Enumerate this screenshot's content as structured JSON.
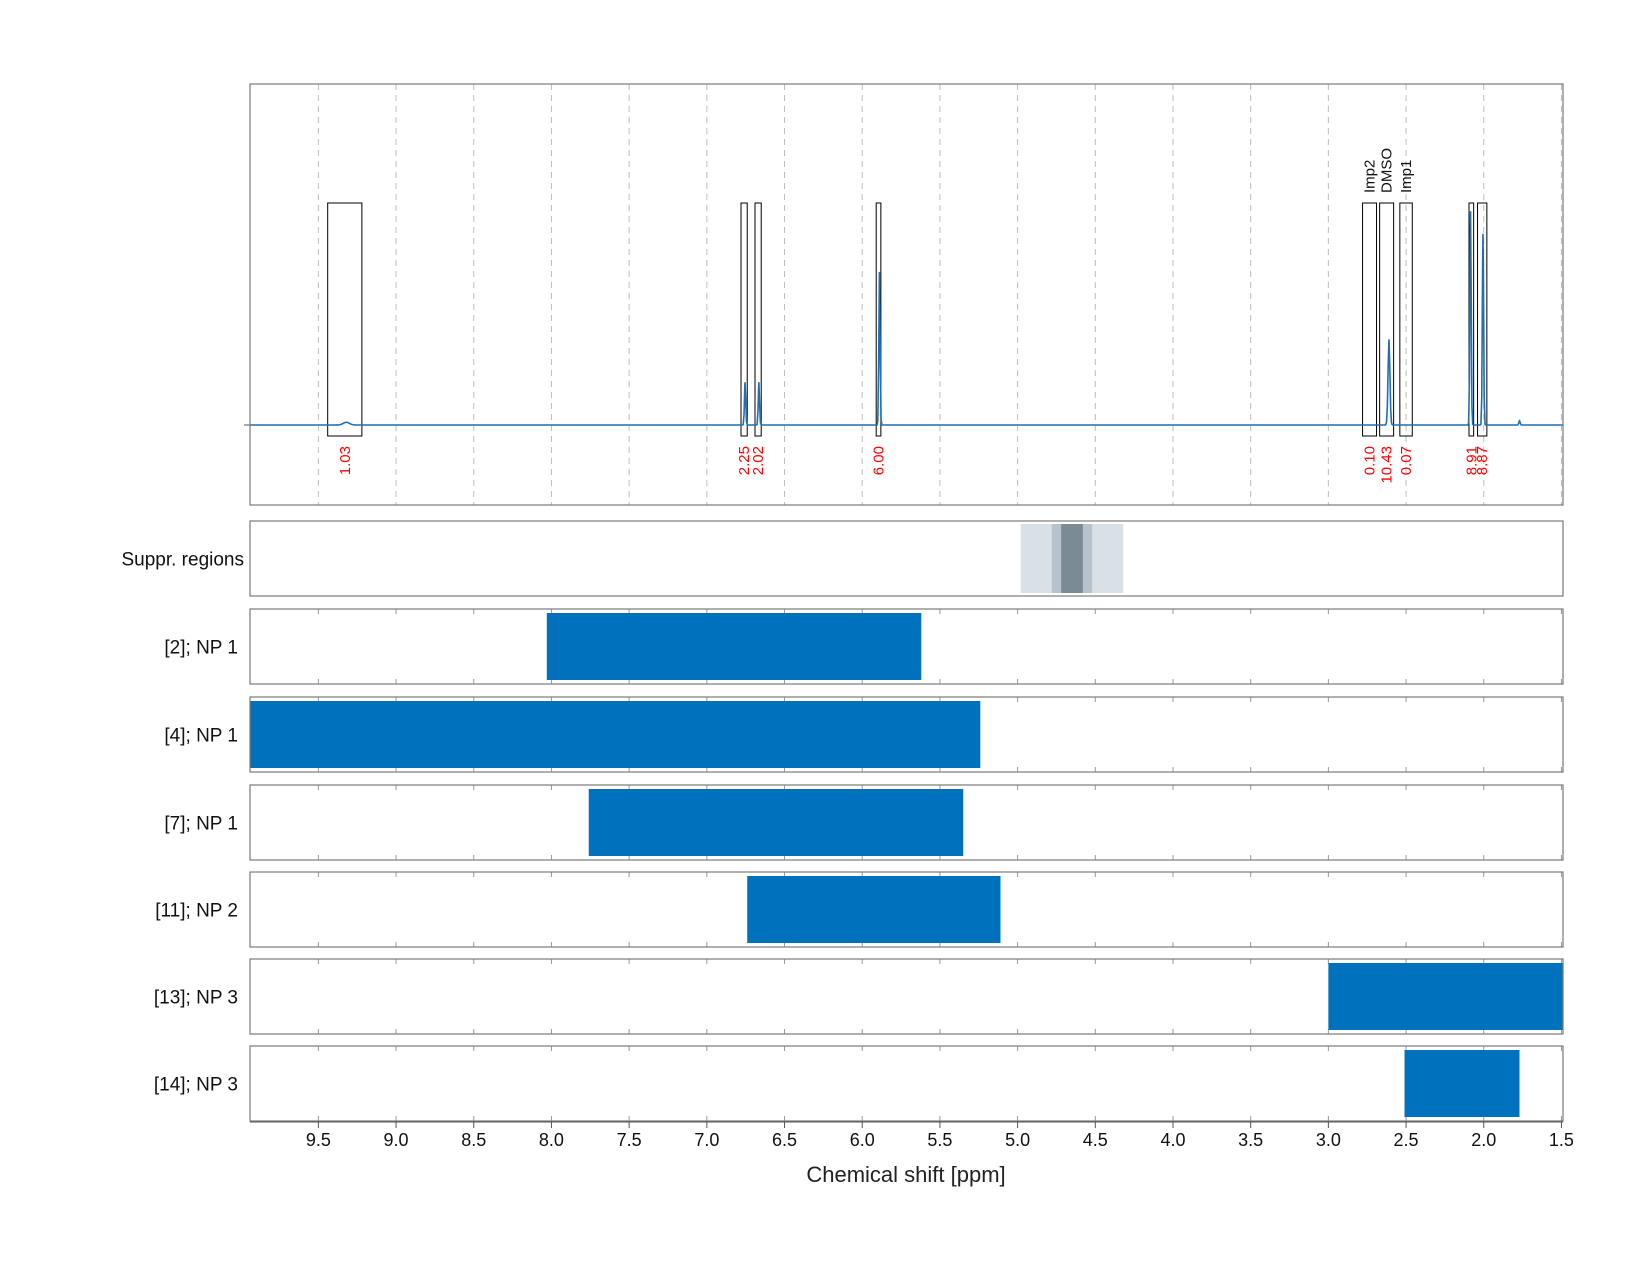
{
  "chart_data": {
    "type": "line",
    "xlabel": "Chemical shift [ppm]",
    "ylabel": "",
    "title": "",
    "xlim": [
      9.94,
      1.49
    ],
    "x_reversed": true,
    "grid": true,
    "x_ticks": [
      "9.5",
      "9.0",
      "8.5",
      "8.0",
      "7.5",
      "7.0",
      "6.5",
      "6.0",
      "5.5",
      "5.0",
      "4.5",
      "4.0",
      "3.5",
      "3.0",
      "2.5",
      "2.0",
      "1.5"
    ],
    "spectrum": {
      "color": "#1f6fb5",
      "baseline": 0,
      "ymax": 1.0,
      "peaks": [
        {
          "x": 9.32,
          "height": 0.012,
          "width": 0.02
        },
        {
          "x": 6.754,
          "height": 0.19,
          "width": 0.004
        },
        {
          "x": 6.665,
          "height": 0.19,
          "width": 0.004
        },
        {
          "x": 5.889,
          "height": 0.68,
          "width": 0.004
        },
        {
          "x": 2.61,
          "height": 0.38,
          "width": 0.006
        },
        {
          "x": 2.085,
          "height": 0.95,
          "width": 0.004
        },
        {
          "x": 2.005,
          "height": 0.85,
          "width": 0.004
        },
        {
          "x": 1.77,
          "height": 0.02,
          "width": 0.004
        }
      ]
    },
    "integration_regions": [
      {
        "from": 9.44,
        "to": 9.22,
        "value": "1.03"
      },
      {
        "from": 6.78,
        "to": 6.74,
        "value": "2.25"
      },
      {
        "from": 6.69,
        "to": 6.65,
        "value": "2.02"
      },
      {
        "from": 5.91,
        "to": 5.88,
        "value": "6.00"
      },
      {
        "from": 2.78,
        "to": 2.69,
        "value": "0.10",
        "label": "Imp2"
      },
      {
        "from": 2.67,
        "to": 2.58,
        "value": "10.43",
        "label": "DMSO"
      },
      {
        "from": 2.54,
        "to": 2.46,
        "value": "0.07",
        "label": "Imp1"
      },
      {
        "from": 2.095,
        "to": 2.065,
        "value": "8.91"
      },
      {
        "from": 2.04,
        "to": 1.98,
        "value": "8.87"
      }
    ],
    "suppression": {
      "label": "Suppr. regions",
      "bands": [
        {
          "from": 4.98,
          "to": 4.32,
          "color": "#d9e1e7"
        },
        {
          "from": 4.78,
          "to": 4.52,
          "color": "#b8c4cd"
        },
        {
          "from": 4.72,
          "to": 4.58,
          "color": "#7b8b96"
        }
      ]
    },
    "tracks": [
      {
        "label": "[2]; NP 1",
        "from": 8.03,
        "to": 5.62
      },
      {
        "label": "[4]; NP 1",
        "from": 9.94,
        "to": 5.24
      },
      {
        "label": "[7]; NP 1",
        "from": 7.76,
        "to": 5.35
      },
      {
        "label": "[11]; NP 2",
        "from": 6.74,
        "to": 5.11
      },
      {
        "label": "[13]; NP 3",
        "from": 3.0,
        "to": 1.49
      },
      {
        "label": "[14]; NP 3",
        "from": 2.51,
        "to": 1.77
      }
    ],
    "colors": {
      "bar": "#0072bd",
      "integral_value": "#ff0000",
      "frame": "#7a7a7a",
      "grid": "#bdbdbd"
    }
  }
}
